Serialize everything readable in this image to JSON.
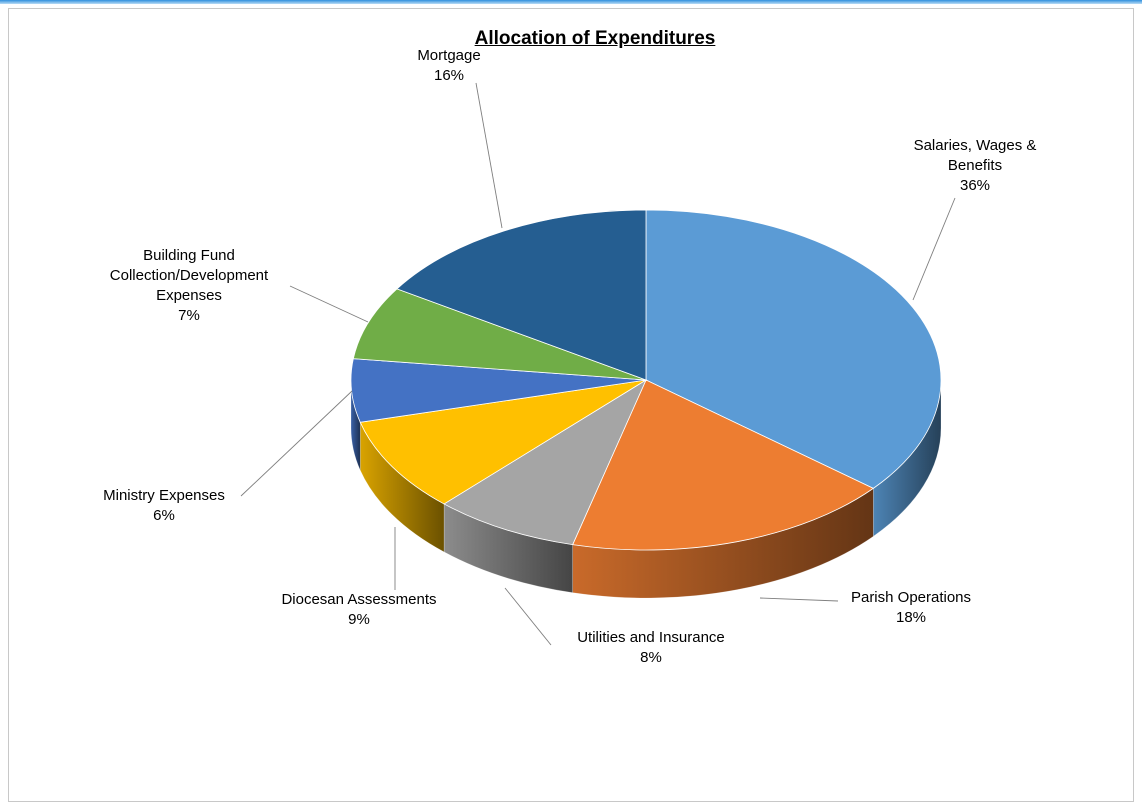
{
  "chart_data": {
    "type": "pie",
    "title": "Allocation of Expenditures",
    "slices": [
      {
        "label": "Salaries, Wages & Benefits",
        "pct_label": "36%",
        "value": 36,
        "color": "#5b9bd5"
      },
      {
        "label": "Parish Operations",
        "pct_label": "18%",
        "value": 18,
        "color": "#ed7d31"
      },
      {
        "label": "Utilities and Insurance",
        "pct_label": "8%",
        "value": 8,
        "color": "#a5a5a5"
      },
      {
        "label": "Diocesan Assessments",
        "pct_label": "9%",
        "value": 9,
        "color": "#ffc000"
      },
      {
        "label": "Ministry Expenses",
        "pct_label": "6%",
        "value": 6,
        "color": "#4472c4"
      },
      {
        "label": "Building Fund Collection/Development Expenses",
        "pct_label": "7%",
        "value": 7,
        "color": "#70ad47"
      },
      {
        "label": "Mortgage",
        "pct_label": "16%",
        "value": 16,
        "color": "#255e91"
      }
    ]
  }
}
